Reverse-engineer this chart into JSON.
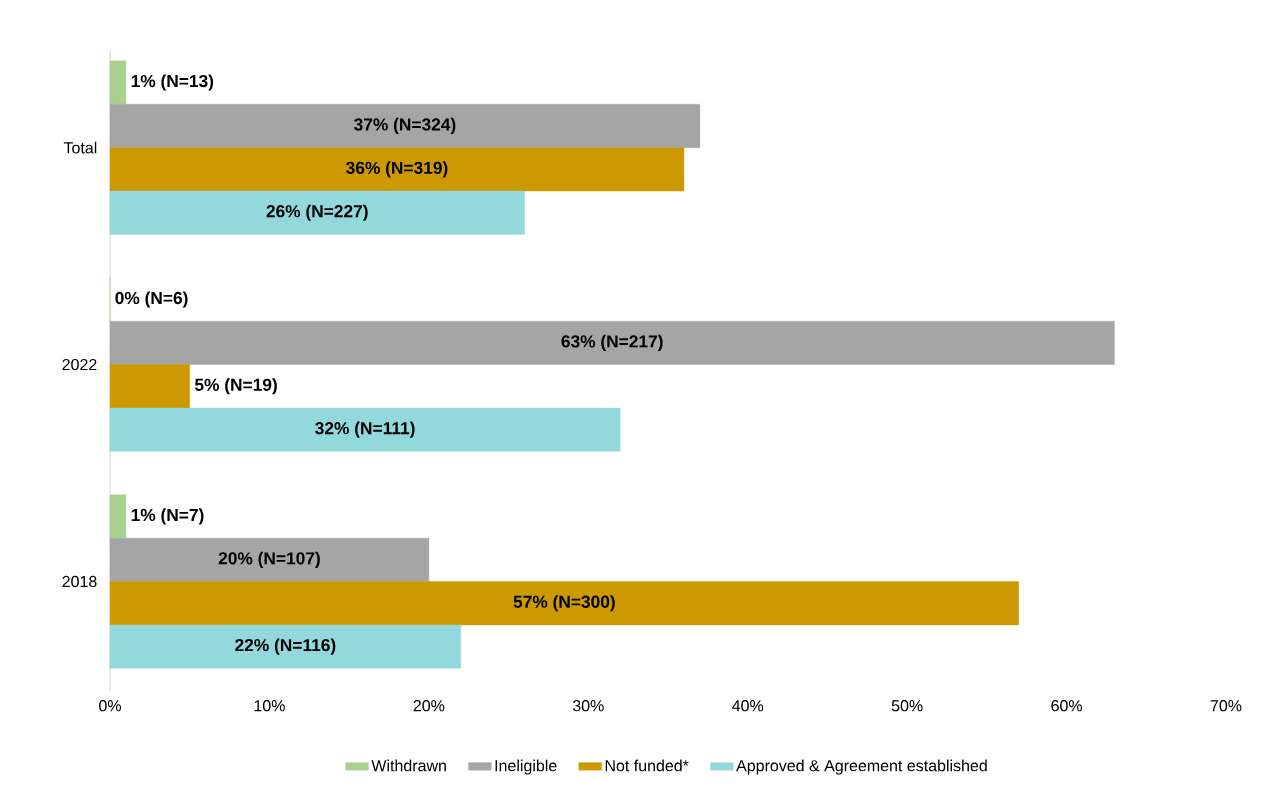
{
  "chart_data": {
    "type": "bar",
    "orientation": "horizontal",
    "categories": [
      "Total",
      "2022",
      "2018"
    ],
    "series": [
      {
        "name": "Withdrawn",
        "color": "#a9d18e",
        "values": [
          1,
          0,
          1
        ],
        "value_labels": [
          "1% (N=13)",
          "0% (N=6)",
          "1% (N=7)"
        ]
      },
      {
        "name": "Ineligible",
        "color": "#a5a5a5",
        "values": [
          37,
          63,
          20
        ],
        "value_labels": [
          "37% (N=324)",
          "63% (N=217)",
          "20% (N=107)"
        ]
      },
      {
        "name": "Not funded*",
        "color": "#cc9900",
        "values": [
          36,
          5,
          57
        ],
        "value_labels": [
          "36% (N=319)",
          "5% (N=19)",
          "57% (N=300)"
        ]
      },
      {
        "name": "Approved & Agreement established",
        "color": "#92d8dc",
        "values": [
          26,
          32,
          22
        ],
        "value_labels": [
          "26% (N=227)",
          "32% (N=111)",
          "22% (N=116)"
        ]
      }
    ],
    "xlim": [
      0,
      70
    ],
    "xticks": [
      {
        "value": 0,
        "label": "0%"
      },
      {
        "value": 10,
        "label": "10%"
      },
      {
        "value": 20,
        "label": "20%"
      },
      {
        "value": 30,
        "label": "30%"
      },
      {
        "value": 40,
        "label": "40%"
      },
      {
        "value": 50,
        "label": "50%"
      },
      {
        "value": 60,
        "label": "60%"
      },
      {
        "value": 70,
        "label": "70%"
      }
    ],
    "grid": false,
    "legend": "bottom"
  }
}
